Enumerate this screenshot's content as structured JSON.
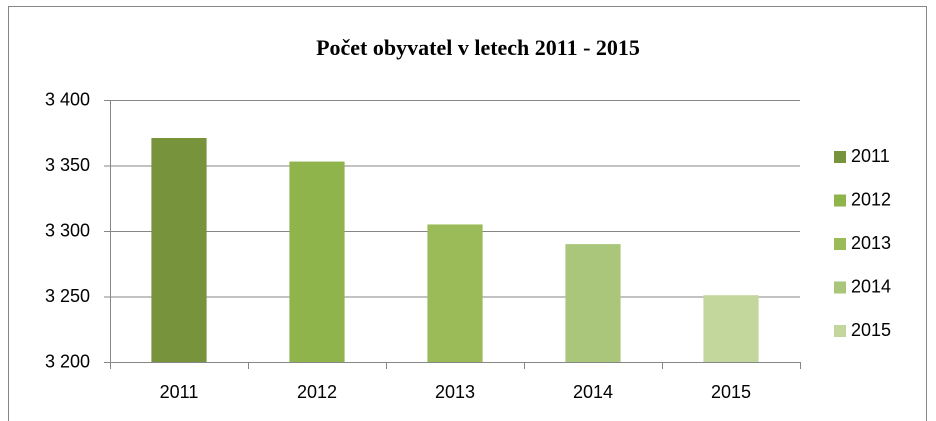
{
  "chart_data": {
    "type": "bar",
    "title": "Počet obyvatel v letech 2011 - 2015",
    "categories": [
      "2011",
      "2012",
      "2013",
      "2014",
      "2015"
    ],
    "values": [
      3371,
      3353,
      3305,
      3290,
      3251
    ],
    "colors": [
      "#77933c",
      "#8fb44c",
      "#9bbb59",
      "#a9c67a",
      "#c3d69b"
    ],
    "ylim": [
      3200,
      3400
    ],
    "yticks": [
      {
        "value": 3200,
        "label": "3 200"
      },
      {
        "value": 3250,
        "label": "3 250"
      },
      {
        "value": 3300,
        "label": "3 300"
      },
      {
        "value": 3350,
        "label": "3 350"
      },
      {
        "value": 3400,
        "label": "3 400"
      }
    ],
    "grid": true,
    "legend": "right"
  }
}
